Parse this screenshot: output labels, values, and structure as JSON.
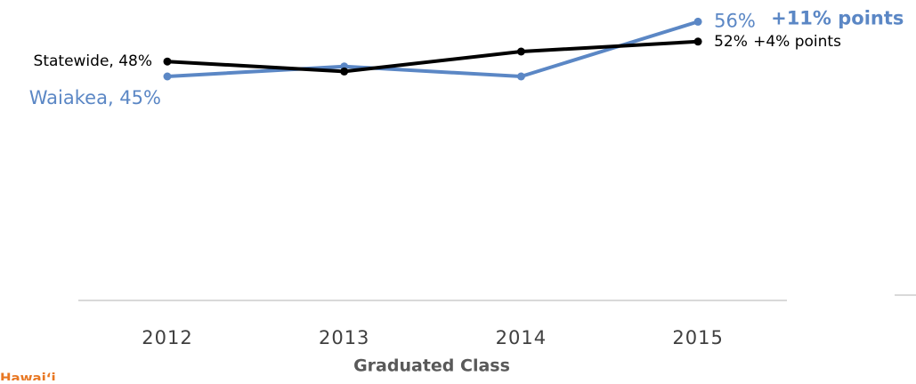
{
  "chart_data": {
    "type": "line",
    "categories": [
      "2012",
      "2013",
      "2014",
      "2015"
    ],
    "series": [
      {
        "name": "Waiakea",
        "color": "#5b87c5",
        "values": [
          45,
          47,
          45,
          56
        ],
        "value_labels": [
          "Waiakea, 45%",
          null,
          null,
          "56%"
        ],
        "change_label": "+11% points"
      },
      {
        "name": "Statewide",
        "color": "#000000",
        "values": [
          48,
          46,
          50,
          52
        ],
        "value_labels": [
          "Statewide, 48%",
          null,
          null,
          "52%"
        ],
        "change_label": "+4% points"
      }
    ],
    "ylim": [
      0,
      60
    ],
    "xlabel": "Graduated Class",
    "footer": "Hawai‘i"
  }
}
